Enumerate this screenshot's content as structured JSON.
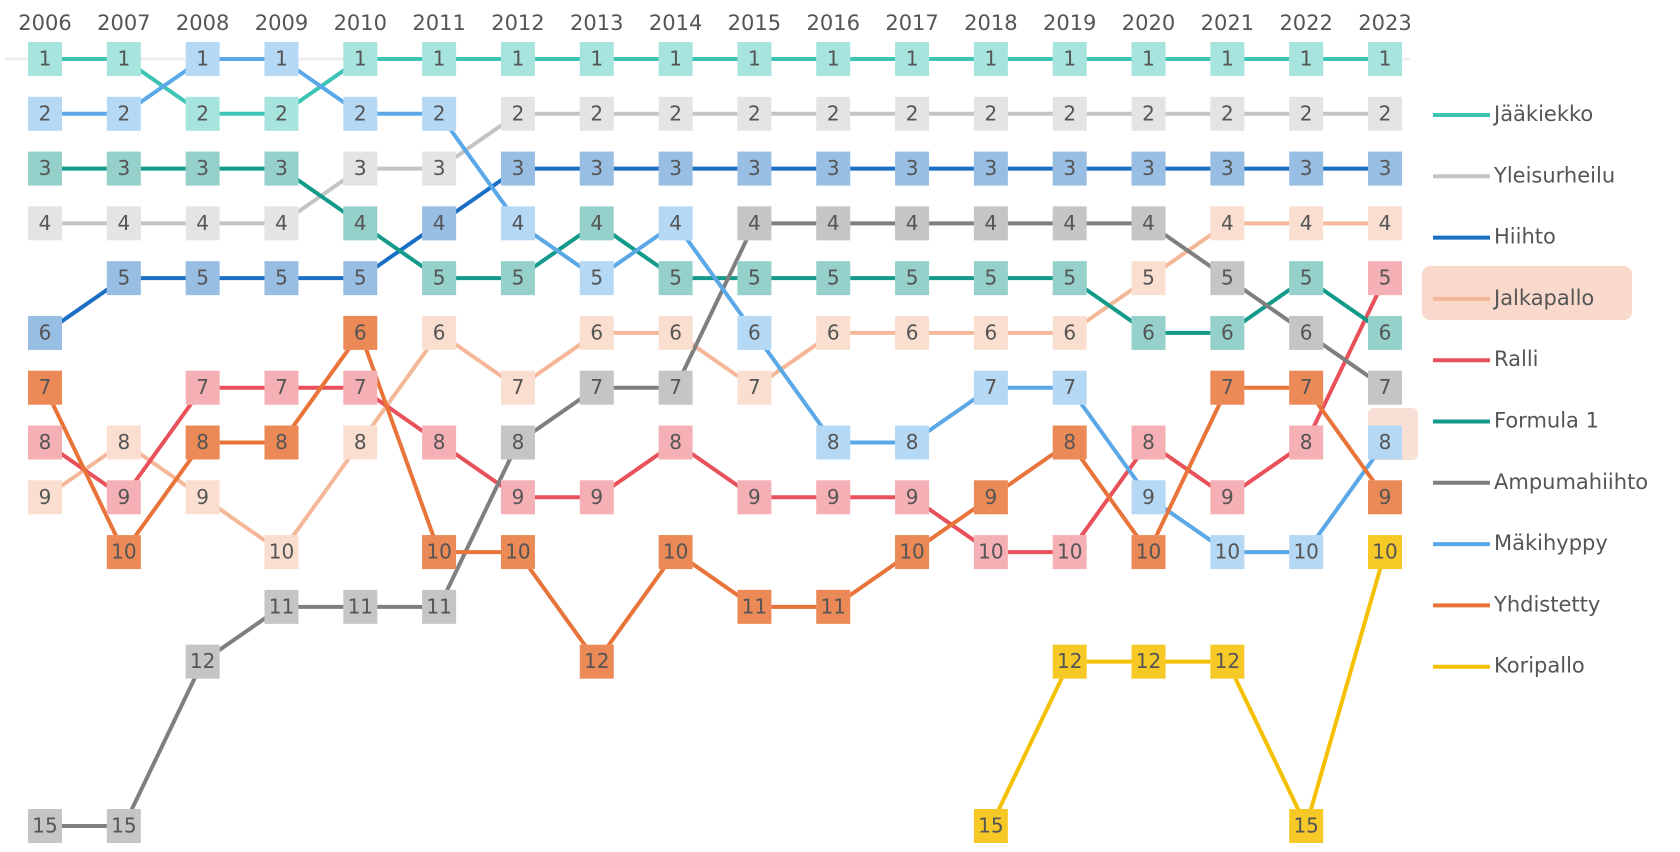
{
  "chart_data": {
    "type": "bump",
    "categories": [
      "2006",
      "2007",
      "2008",
      "2009",
      "2010",
      "2011",
      "2012",
      "2013",
      "2014",
      "2015",
      "2016",
      "2017",
      "2018",
      "2019",
      "2020",
      "2021",
      "2022",
      "2023"
    ],
    "ylim": [
      15,
      1
    ],
    "series": [
      {
        "name": "Jääkiekko",
        "color": "#3cc4b4",
        "values": [
          1,
          1,
          2,
          2,
          1,
          1,
          1,
          1,
          1,
          1,
          1,
          1,
          1,
          1,
          1,
          1,
          1,
          1
        ]
      },
      {
        "name": "Yleisurheilu",
        "color": "#c4c4c4",
        "values": [
          4,
          4,
          4,
          4,
          3,
          3,
          2,
          2,
          2,
          2,
          2,
          2,
          2,
          2,
          2,
          2,
          2,
          2
        ]
      },
      {
        "name": "Hiihto",
        "color": "#1a6fc4",
        "values": [
          6,
          5,
          5,
          5,
          5,
          4,
          3,
          3,
          3,
          3,
          3,
          3,
          3,
          3,
          3,
          3,
          3,
          3
        ]
      },
      {
        "name": "Jalkapallo",
        "color": "#f4b898",
        "values": [
          9,
          8,
          9,
          10,
          8,
          6,
          7,
          6,
          6,
          7,
          6,
          6,
          6,
          6,
          5,
          4,
          4,
          4
        ]
      },
      {
        "name": "Ralli",
        "color": "#e8505a",
        "values": [
          8,
          9,
          7,
          7,
          7,
          8,
          9,
          9,
          8,
          9,
          9,
          9,
          10,
          10,
          8,
          9,
          8,
          5
        ]
      },
      {
        "name": "Formula 1",
        "color": "#139a8a",
        "values": [
          3,
          3,
          3,
          3,
          4,
          5,
          5,
          4,
          5,
          5,
          5,
          5,
          5,
          5,
          6,
          6,
          5,
          6
        ]
      },
      {
        "name": "Ampumahiihto",
        "color": "#7f7f7f",
        "values": [
          15,
          15,
          12,
          11,
          11,
          11,
          8,
          7,
          7,
          4,
          4,
          4,
          4,
          4,
          4,
          5,
          6,
          7
        ]
      },
      {
        "name": "Mäkihyppy",
        "color": "#5aa8e8",
        "values": [
          2,
          2,
          1,
          1,
          2,
          2,
          4,
          5,
          4,
          6,
          8,
          8,
          7,
          7,
          9,
          10,
          10,
          8
        ]
      },
      {
        "name": "Yhdistetty",
        "color": "#e8743a",
        "values": [
          7,
          10,
          8,
          8,
          6,
          10,
          10,
          12,
          10,
          11,
          11,
          10,
          9,
          8,
          10,
          7,
          7,
          9
        ]
      },
      {
        "name": "Koripallo",
        "color": "#f5c000",
        "values": [
          null,
          null,
          null,
          null,
          null,
          null,
          null,
          null,
          null,
          null,
          null,
          null,
          15,
          12,
          12,
          12,
          15,
          10
        ]
      }
    ]
  }
}
